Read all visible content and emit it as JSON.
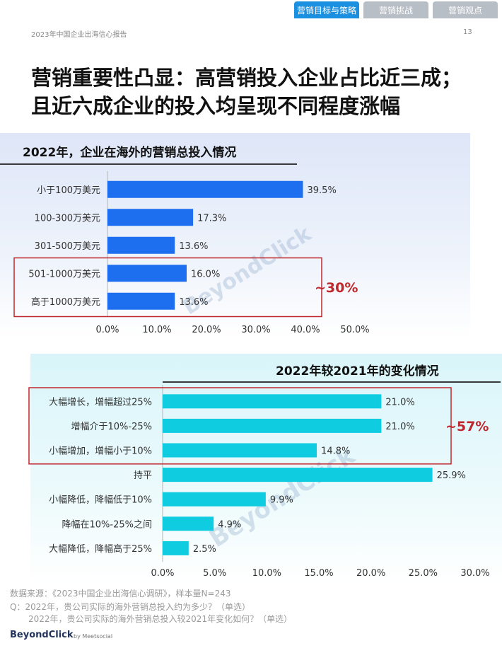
{
  "header": {
    "tabs": [
      {
        "label": "营销目标与策略",
        "active": true
      },
      {
        "label": "营销挑战",
        "active": false
      },
      {
        "label": "营销观点",
        "active": false
      }
    ],
    "report_title": "2023年中国企业出海信心报告",
    "page_number": "13"
  },
  "headline": {
    "line1": "营销重要性凸显：高营销投入企业占比近三成；",
    "line2": "且近六成企业的投入均呈现不同程度涨幅"
  },
  "colors": {
    "bar_blue": "#1e6ff0",
    "bar_cyan": "#10cce0",
    "highlight_red": "#c0272d"
  },
  "chart_data": [
    {
      "type": "bar",
      "orientation": "horizontal",
      "title": "2022年，企业在海外的营销总投入情况",
      "categories": [
        "小于100万美元",
        "100-300万美元",
        "301-500万美元",
        "501-1000万美元",
        "高于1000万美元"
      ],
      "values": [
        39.5,
        17.3,
        13.6,
        16.0,
        13.6
      ],
      "value_labels": [
        "39.5%",
        "17.3%",
        "13.6%",
        "16.0%",
        "13.6%"
      ],
      "xlim": [
        0,
        50
      ],
      "ticks": [
        "0.0%",
        "10.0%",
        "20.0%",
        "30.0%",
        "40.0%",
        "50.0%"
      ],
      "grid": false,
      "highlight": {
        "categories": [
          "501-1000万美元",
          "高于1000万美元"
        ],
        "label": "~30%"
      }
    },
    {
      "type": "bar",
      "orientation": "horizontal",
      "title": "2022年较2021年的变化情况",
      "categories": [
        "大幅增长，增幅超过25%",
        "增幅介于10%-25%",
        "小幅增加，增幅小于10%",
        "持平",
        "小幅降低，降幅低于10%",
        "降幅在10%-25%之间",
        "大幅降低，降幅高于25%"
      ],
      "values": [
        21.0,
        21.0,
        14.8,
        25.9,
        9.9,
        4.9,
        2.5
      ],
      "value_labels": [
        "21.0%",
        "21.0%",
        "14.8%",
        "25.9%",
        "9.9%",
        "4.9%",
        "2.5%"
      ],
      "xlim": [
        0,
        30
      ],
      "ticks": [
        "0.0%",
        "5.0%",
        "10.0%",
        "15.0%",
        "20.0%",
        "25.0%",
        "30.0%"
      ],
      "grid": false,
      "highlight": {
        "categories": [
          "大幅增长，增幅超过25%",
          "增幅介于10%-25%",
          "小幅增加，增幅小于10%"
        ],
        "label": "~57%"
      }
    }
  ],
  "footer": {
    "source": "数据来源：《2023中国企业出海信心调研》，样本量N=243",
    "q1": "Q：2022年，贵公司实际的海外营销总投入约为多少？（单选）",
    "q2": "2022年，贵公司实际的海外营销总投入较2021年变化如何？（单选）"
  },
  "branding": {
    "logo": "BeyondClick",
    "by": "by",
    "partner": "Meetsocial"
  }
}
